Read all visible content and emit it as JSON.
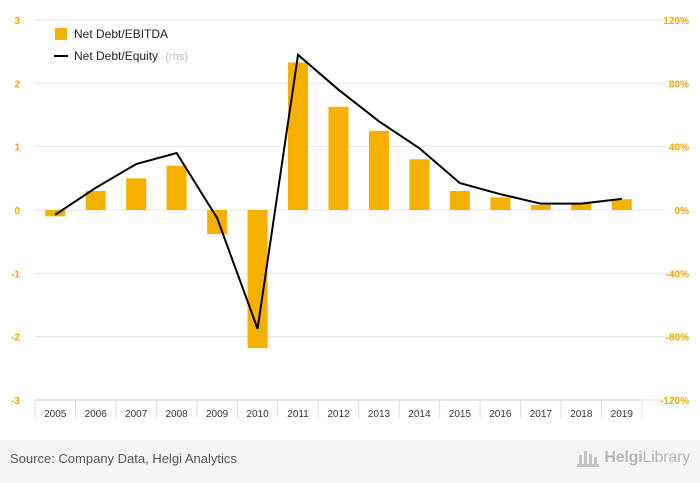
{
  "chart_data": {
    "type": "bar",
    "categories": [
      "2005",
      "2006",
      "2007",
      "2008",
      "2009",
      "2010",
      "2011",
      "2012",
      "2013",
      "2014",
      "2015",
      "2016",
      "2017",
      "2018",
      "2019"
    ],
    "series": [
      {
        "name": "Net Debt/EBITDA",
        "type": "bar",
        "axis": "left",
        "color": "#f5b000",
        "values": [
          -0.1,
          0.3,
          0.5,
          0.7,
          -0.38,
          -2.18,
          2.33,
          1.63,
          1.25,
          0.8,
          0.3,
          0.2,
          0.08,
          0.1,
          0.17
        ]
      },
      {
        "name": "Net Debt/Equity",
        "type": "line",
        "axis": "right",
        "color": "#000000",
        "values": [
          -3,
          14,
          29,
          36,
          -5,
          -75,
          98,
          76,
          56,
          39,
          17,
          10,
          4,
          4,
          7
        ]
      }
    ],
    "legend": {
      "position": "top-left",
      "entries": [
        {
          "label": "Net Debt/EBITDA",
          "suffix": ""
        },
        {
          "label": "Net Debt/Equity",
          "suffix": "(rhs)"
        }
      ]
    },
    "left_axis": {
      "ylim": [
        -3,
        3
      ],
      "ticks": [
        "-3",
        "-2",
        "-1",
        "0",
        "1",
        "2",
        "3"
      ]
    },
    "right_axis": {
      "ylim": [
        -120,
        120
      ],
      "ticks": [
        "-120%",
        "-80%",
        "-40%",
        "0%",
        "40%",
        "80%",
        "120%"
      ]
    },
    "grid": true,
    "title": "",
    "xlabel": "",
    "ylabel": ""
  },
  "footer": {
    "source": "Source: Company Data, Helgi Analytics",
    "logo_bold": "Helgi",
    "logo_light": "Library"
  },
  "colors": {
    "accent": "#f5b000",
    "tick": "#f0a800",
    "grid": "#e6e6e6"
  }
}
